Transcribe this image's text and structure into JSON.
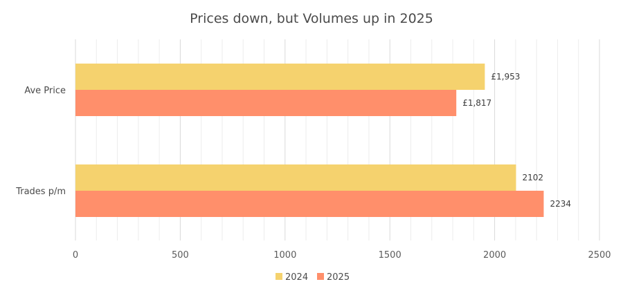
{
  "chart_data": {
    "type": "bar",
    "orientation": "horizontal",
    "title": "Prices down, but Volumes up in 2025",
    "categories": [
      "Ave Price",
      "Trades p/m"
    ],
    "series": [
      {
        "name": "2024",
        "color": "#F5D26E",
        "values": [
          1953,
          2102
        ],
        "labels": [
          "£1,953",
          "2102"
        ]
      },
      {
        "name": "2025",
        "color": "#FF8F6B",
        "values": [
          1817,
          2234
        ],
        "labels": [
          "£1,817",
          "2234"
        ]
      }
    ],
    "xlim": [
      0,
      2500
    ],
    "xticks": [
      0,
      500,
      1000,
      1500,
      2000,
      2500
    ],
    "xtick_labels": [
      "0",
      "500",
      "1000",
      "1500",
      "2000",
      "2500"
    ],
    "grid": true,
    "legend_position": "bottom"
  }
}
